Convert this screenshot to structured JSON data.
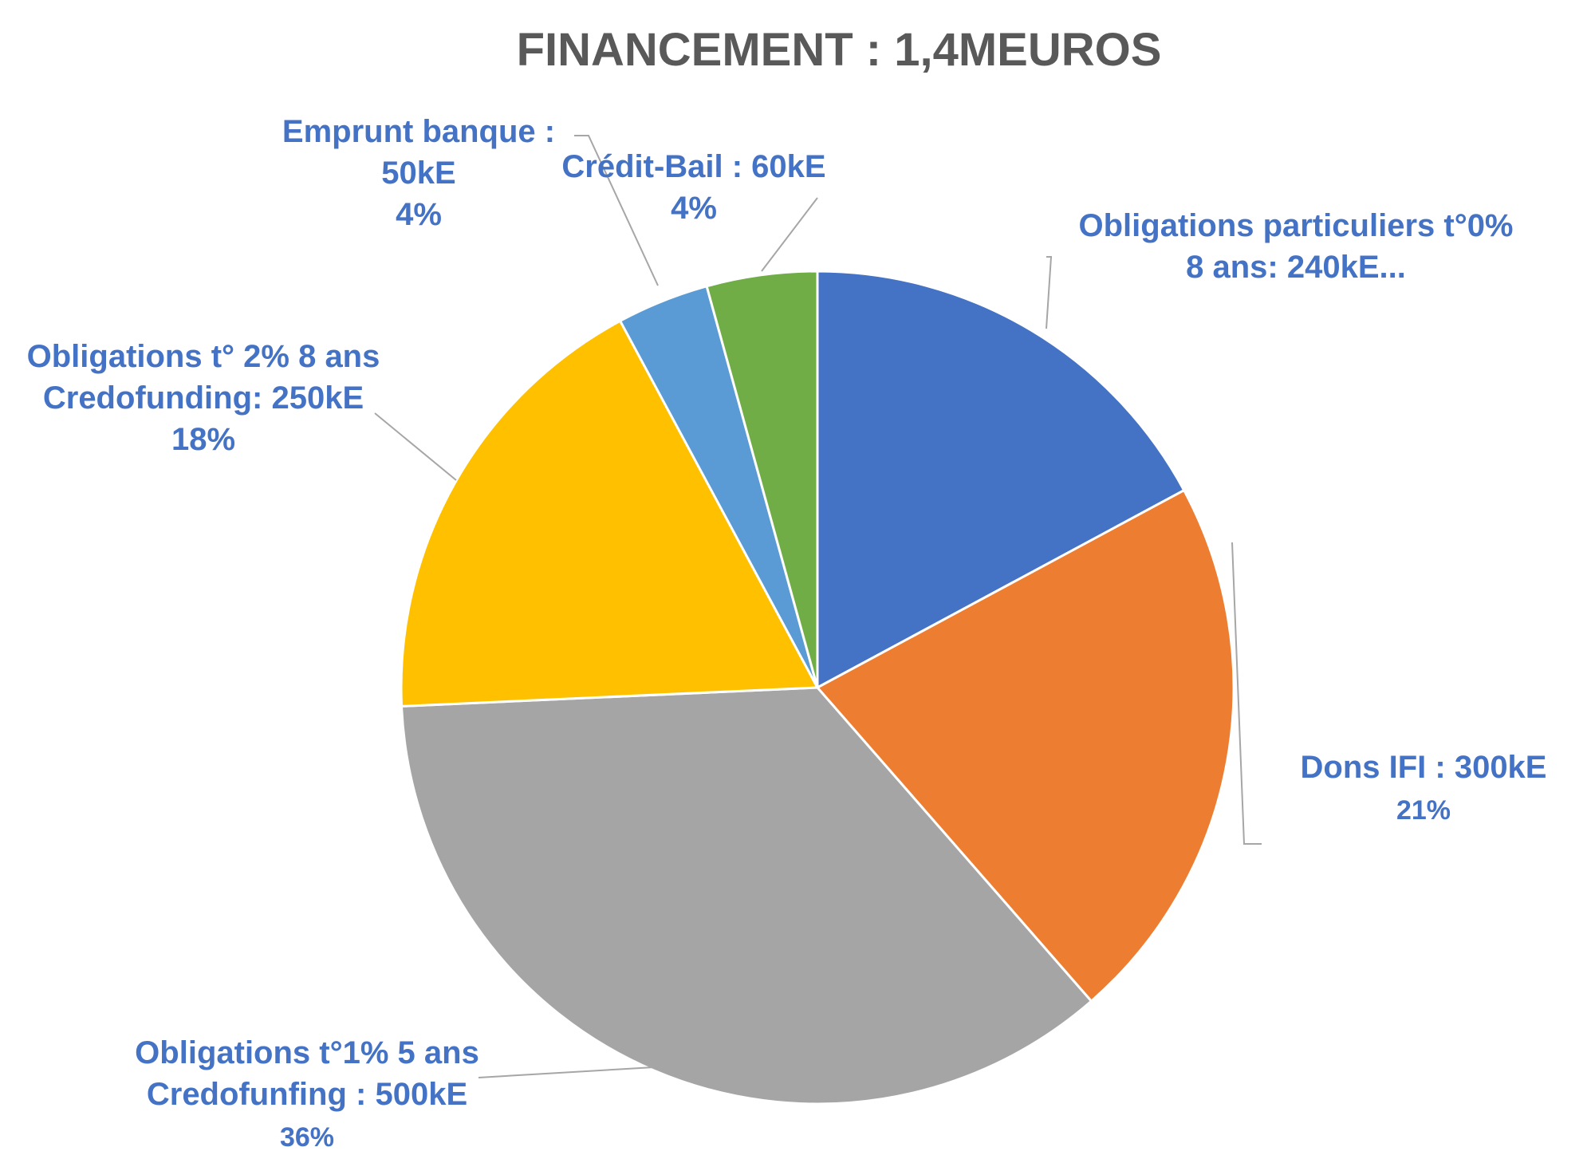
{
  "chart_data": {
    "type": "pie",
    "title": "FINANCEMENT : 1,4MEUROS",
    "colors": [
      "#4472C4",
      "#ED7D31",
      "#A5A5A5",
      "#FFC000",
      "#5B9BD5",
      "#70AD47"
    ],
    "label_color": "#4472C4",
    "slices": [
      {
        "value": 240,
        "label_lines": [
          "Obligations particuliers t°0%",
          "8 ans: 240kE..."
        ]
      },
      {
        "value": 300,
        "label_lines": [
          "Dons IFI : 300kE",
          "21%"
        ]
      },
      {
        "value": 500,
        "label_lines": [
          "Obligations t°1% 5 ans",
          "Credofunfing : 500kE",
          "36%"
        ]
      },
      {
        "value": 250,
        "label_lines": [
          "Obligations t° 2% 8 ans",
          "Credofunding: 250kE",
          "18%"
        ]
      },
      {
        "value": 50,
        "label_lines": [
          "Emprunt banque :",
          "50kE",
          "4%"
        ]
      },
      {
        "value": 60,
        "label_lines": [
          "Crédit-Bail : 60kE",
          "4%"
        ]
      }
    ]
  }
}
